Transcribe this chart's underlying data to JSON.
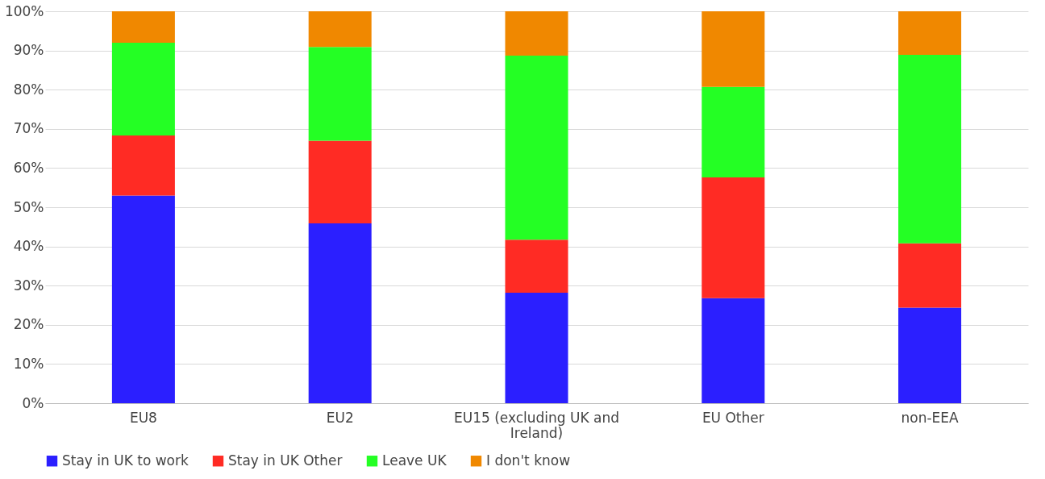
{
  "chart_data": {
    "type": "bar",
    "stacked": true,
    "categories": [
      "EU8",
      "EU2",
      "EU15 (excluding UK and Ireland)",
      "EU Other",
      "non-EEA"
    ],
    "series": [
      {
        "name": "Stay in UK to work",
        "color": "#2b1fff",
        "values": [
          53.0,
          45.9,
          28.2,
          26.8,
          24.4
        ]
      },
      {
        "name": "Stay in UK Other",
        "color": "#ff2b24",
        "values": [
          15.3,
          21.1,
          13.5,
          30.8,
          16.4
        ]
      },
      {
        "name": "Leave UK",
        "color": "#24ff24",
        "values": [
          23.7,
          23.9,
          47.0,
          23.1,
          48.1
        ]
      },
      {
        "name": "I don't know",
        "color": "#f08800",
        "values": [
          8.0,
          9.1,
          11.3,
          19.3,
          11.1
        ]
      }
    ],
    "ylim": [
      0,
      100
    ],
    "yticks": [
      {
        "value": 0,
        "label": "0%"
      },
      {
        "value": 10,
        "label": "10%"
      },
      {
        "value": 20,
        "label": "20%"
      },
      {
        "value": 30,
        "label": "30%"
      },
      {
        "value": 40,
        "label": "40%"
      },
      {
        "value": 50,
        "label": "50%"
      },
      {
        "value": 60,
        "label": "60%"
      },
      {
        "value": 70,
        "label": "70%"
      },
      {
        "value": 80,
        "label": "80%"
      },
      {
        "value": 90,
        "label": "90%"
      },
      {
        "value": 100,
        "label": "100%"
      }
    ],
    "grid": "y",
    "legend": "bottom"
  }
}
